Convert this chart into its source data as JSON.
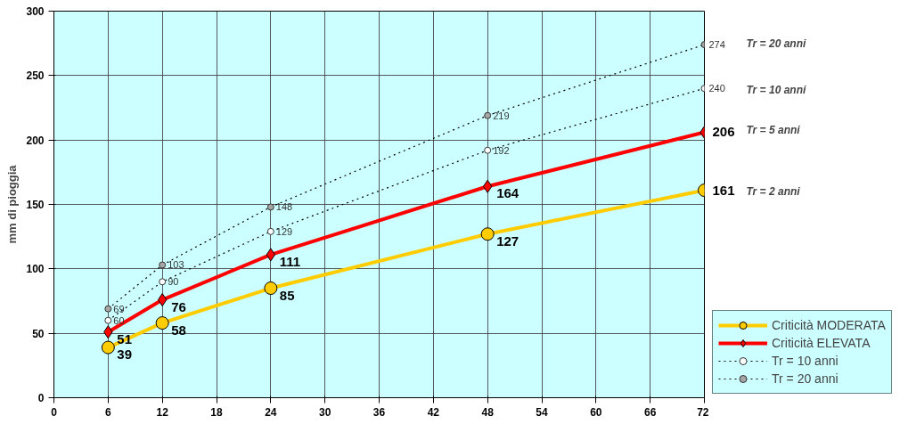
{
  "chart_data": {
    "type": "line",
    "ylabel": "mm di pioggia",
    "x": [
      6,
      12,
      24,
      48,
      72
    ],
    "series": [
      {
        "name": "Criticità MODERATA",
        "color": "#ffcc00",
        "marker": "circle",
        "line_style": "solid",
        "values": [
          39,
          58,
          85,
          127,
          161
        ]
      },
      {
        "name": "Criticità ELEVATA",
        "color": "#ff0000",
        "marker": "diamond",
        "line_style": "solid",
        "values": [
          51,
          76,
          111,
          164,
          206
        ]
      },
      {
        "name": "Tr = 10 anni",
        "color": "#000000",
        "colors": [
          "#ffffff",
          "#ffffff",
          "#ffffff",
          "#ffffff",
          "#ffffff"
        ],
        "marker": "circle",
        "line_style": "dotted",
        "values": [
          60,
          90,
          129,
          192,
          240
        ]
      },
      {
        "name": "Tr = 20 anni",
        "color": "#000000",
        "colors": [
          "#a6a6a6",
          "#a6a6a6",
          "#a6a6a6",
          "#a6a6a6",
          "#a6a6a6"
        ],
        "marker": "circle",
        "line_style": "dotted",
        "values": [
          69,
          103,
          148,
          219,
          274
        ]
      }
    ],
    "xlim": [
      0,
      72
    ],
    "ylim": [
      0,
      300
    ],
    "xticks": [
      0,
      6,
      12,
      18,
      24,
      30,
      36,
      42,
      48,
      54,
      60,
      66,
      72
    ],
    "yticks": [
      0,
      50,
      100,
      150,
      200,
      250,
      300
    ],
    "annotations": [
      "Tr = 20 anni",
      "Tr = 10 anni",
      "Tr = 5 anni",
      "Tr = 2 anni"
    ],
    "data_labels": true,
    "grid": true,
    "legend": "bottom right"
  }
}
